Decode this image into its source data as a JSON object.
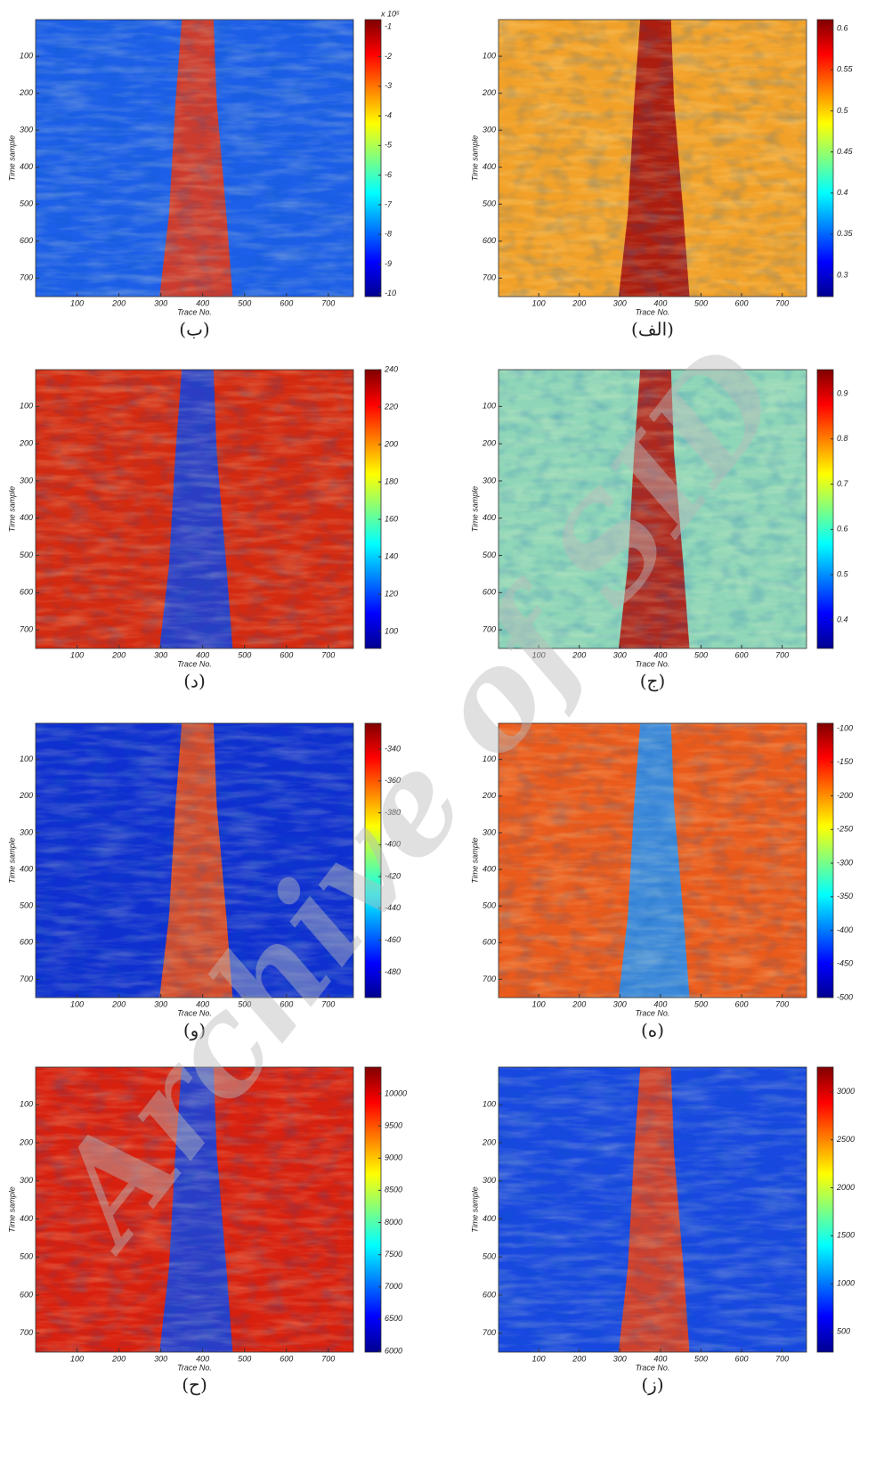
{
  "chart_data": [
    {
      "type": "heatmap",
      "caption": "(ب)",
      "xlabel": "Trace No.",
      "ylabel": "Time sample",
      "xlim": [
        1,
        760
      ],
      "ylim": [
        1,
        750
      ],
      "xticks": [
        100,
        200,
        300,
        400,
        500,
        600,
        700
      ],
      "yticks": [
        100,
        200,
        300,
        400,
        500,
        600,
        700
      ],
      "colormap": "jet",
      "clim": [
        -10.1,
        -0.75
      ],
      "cticks": [
        -1,
        -2,
        -3,
        -4,
        -5,
        -6,
        -7,
        -8,
        -9,
        -10
      ],
      "colorbar_scale": "x 10⁵",
      "background_color": "#1d5fe8",
      "band_color": "#e0391a"
    },
    {
      "type": "heatmap",
      "caption": "(الف)",
      "xlabel": "Trace No.",
      "ylabel": "Time sample",
      "xlim": [
        1,
        760
      ],
      "ylim": [
        1,
        750
      ],
      "xticks": [
        100,
        200,
        300,
        400,
        500,
        600,
        700
      ],
      "yticks": [
        100,
        200,
        300,
        400,
        500,
        600,
        700
      ],
      "colormap": "jet",
      "clim": [
        0.274,
        0.611
      ],
      "cticks": [
        0.6,
        0.55,
        0.5,
        0.45,
        0.4,
        0.35,
        0.3
      ],
      "background_color": "#f2a128",
      "band_color": "#a3100c"
    },
    {
      "type": "heatmap",
      "caption": "(د)",
      "xlabel": "Trace No.",
      "ylabel": "Time sample",
      "xlim": [
        1,
        760
      ],
      "ylim": [
        1,
        750
      ],
      "xticks": [
        100,
        200,
        300,
        400,
        500,
        600,
        700
      ],
      "yticks": [
        100,
        200,
        300,
        400,
        500,
        600,
        700
      ],
      "colormap": "jet",
      "clim": [
        91,
        240
      ],
      "cticks": [
        240,
        220,
        200,
        180,
        160,
        140,
        120,
        100
      ],
      "background_color": "#d42a10",
      "band_color": "#1a3fd8"
    },
    {
      "type": "heatmap",
      "caption": "(ج)",
      "xlabel": "Trace No.",
      "ylabel": "Time sample",
      "xlim": [
        1,
        760
      ],
      "ylim": [
        1,
        750
      ],
      "xticks": [
        100,
        200,
        300,
        400,
        500,
        600,
        700
      ],
      "yticks": [
        100,
        200,
        300,
        400,
        500,
        600,
        700
      ],
      "colormap": "jet",
      "clim": [
        0.337,
        0.953
      ],
      "cticks": [
        0.9,
        0.8,
        0.7,
        0.6,
        0.5,
        0.4
      ],
      "background_color": "#8fd6b8",
      "band_color": "#b0160e"
    },
    {
      "type": "heatmap",
      "caption": "(و)",
      "xlabel": "Trace No.",
      "ylabel": "Time sample",
      "xlim": [
        1,
        760
      ],
      "ylim": [
        1,
        750
      ],
      "xticks": [
        100,
        200,
        300,
        400,
        500,
        600,
        700
      ],
      "yticks": [
        100,
        200,
        300,
        400,
        500,
        600,
        700
      ],
      "colormap": "jet",
      "clim": [
        -496,
        -323.8
      ],
      "cticks": [
        -340,
        -360,
        -380,
        -400,
        -420,
        -440,
        -460,
        -480
      ],
      "background_color": "#0f2fd0",
      "band_color": "#e8501a"
    },
    {
      "type": "heatmap",
      "caption": "(ه)",
      "xlabel": "Trace No.",
      "ylabel": "Time sample",
      "xlim": [
        1,
        760
      ],
      "ylim": [
        1,
        750
      ],
      "xticks": [
        100,
        200,
        300,
        400,
        500,
        600,
        700
      ],
      "yticks": [
        100,
        200,
        300,
        400,
        500,
        600,
        700
      ],
      "colormap": "jet",
      "clim": [
        -500,
        -92
      ],
      "cticks": [
        -100,
        -150,
        -200,
        -250,
        -300,
        -350,
        -400,
        -450,
        -500
      ],
      "background_color": "#ea5a1a",
      "band_color": "#2a8ef0"
    },
    {
      "type": "heatmap",
      "caption": "(ح)",
      "xlabel": "Trace No.",
      "ylabel": "Time sample",
      "xlim": [
        1,
        760
      ],
      "ylim": [
        1,
        750
      ],
      "xticks": [
        100,
        200,
        300,
        400,
        500,
        600,
        700
      ],
      "yticks": [
        100,
        200,
        300,
        400,
        500,
        600,
        700
      ],
      "colormap": "jet",
      "clim": [
        5986,
        10415
      ],
      "cticks": [
        10000,
        9500,
        9000,
        8500,
        8000,
        7500,
        7000,
        6500,
        6000
      ],
      "background_color": "#d8200e",
      "band_color": "#1840dc"
    },
    {
      "type": "heatmap",
      "caption": "(ز)",
      "xlabel": "Trace No.",
      "ylabel": "Time sample",
      "xlim": [
        1,
        760
      ],
      "ylim": [
        1,
        750
      ],
      "xticks": [
        100,
        200,
        300,
        400,
        500,
        600,
        700
      ],
      "yticks": [
        100,
        200,
        300,
        400,
        500,
        600,
        700
      ],
      "colormap": "jet",
      "clim": [
        287,
        3258
      ],
      "cticks": [
        3000,
        2500,
        2000,
        1500,
        1000,
        500
      ],
      "background_color": "#1848e0",
      "band_color": "#e2401a"
    }
  ],
  "watermark": "Archive of SID"
}
